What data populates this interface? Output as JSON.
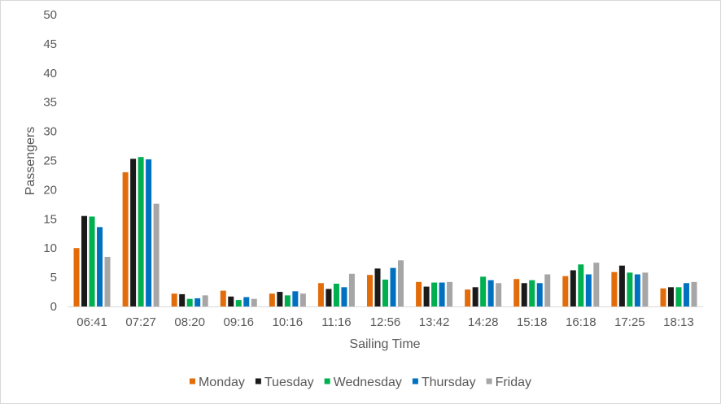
{
  "chart_data": {
    "type": "bar",
    "title": "",
    "xlabel": "Sailing Time",
    "ylabel": "Passengers",
    "ylim": [
      0,
      50
    ],
    "yticks": [
      0,
      5,
      10,
      15,
      20,
      25,
      30,
      35,
      40,
      45,
      50
    ],
    "grid": false,
    "legend_position": "bottom",
    "categories": [
      "06:41",
      "07:27",
      "08:20",
      "09:16",
      "10:16",
      "11:16",
      "12:56",
      "13:42",
      "14:28",
      "15:18",
      "16:18",
      "17:25",
      "18:13"
    ],
    "series": [
      {
        "name": "Monday",
        "color": "#e36c0a",
        "values": [
          10,
          23,
          2.2,
          2.7,
          2.2,
          4,
          5.4,
          4.2,
          2.9,
          4.7,
          5.2,
          5.9,
          3.1
        ]
      },
      {
        "name": "Tuesday",
        "color": "#1a1a1a",
        "values": [
          15.5,
          25.3,
          2.1,
          1.7,
          2.5,
          3,
          6.5,
          3.4,
          3.3,
          4,
          6.2,
          7,
          3.3
        ]
      },
      {
        "name": "Wednesday",
        "color": "#00b050",
        "values": [
          15.4,
          25.6,
          1.3,
          1.1,
          1.9,
          3.9,
          4.6,
          4.1,
          5.1,
          4.5,
          7.2,
          5.8,
          3.3
        ]
      },
      {
        "name": "Thursday",
        "color": "#0070c0",
        "values": [
          13.6,
          25.2,
          1.4,
          1.6,
          2.6,
          3.3,
          6.6,
          4.1,
          4.5,
          4,
          5.5,
          5.5,
          4
        ]
      },
      {
        "name": "Friday",
        "color": "#a6a6a6",
        "values": [
          8.5,
          17.6,
          1.9,
          1.3,
          2.2,
          5.6,
          7.9,
          4.2,
          4,
          5.5,
          7.5,
          5.8,
          4.2
        ]
      }
    ]
  }
}
